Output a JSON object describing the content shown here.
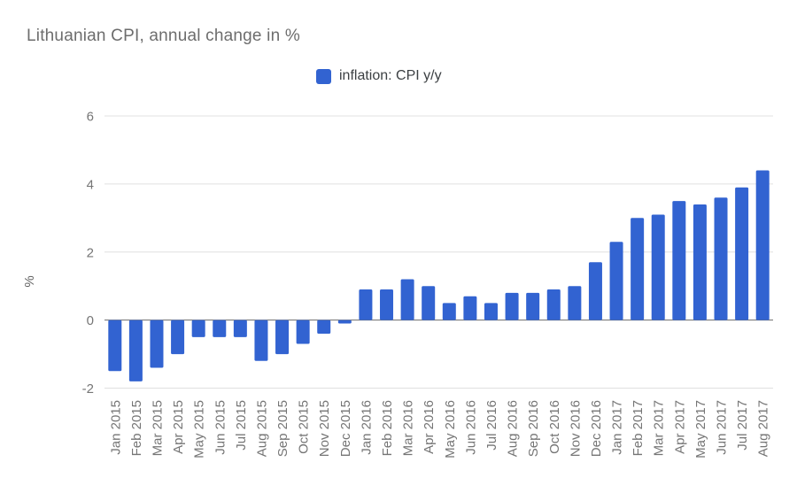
{
  "chart_data": {
    "type": "bar",
    "title": "Lithuanian CPI, annual change in %",
    "xlabel": "",
    "ylabel": "%",
    "ylim": [
      -2,
      6
    ],
    "yticks": [
      6,
      4,
      2,
      0,
      -2
    ],
    "grid": true,
    "legend_position": "top",
    "bar_color": "#3263d1",
    "gridline_color": "#e0e0e0",
    "zero_line_color": "#6b6b6b",
    "axis_label_color": "#757575",
    "categories": [
      "Jan 2015",
      "Feb 2015",
      "Mar 2015",
      "Apr 2015",
      "May 2015",
      "Jun 2015",
      "Jul 2015",
      "Aug 2015",
      "Sep 2015",
      "Oct 2015",
      "Nov 2015",
      "Dec 2015",
      "Jan 2016",
      "Feb 2016",
      "Mar 2016",
      "Apr 2016",
      "May 2016",
      "Jun 2016",
      "Jul 2016",
      "Aug 2016",
      "Sep 2016",
      "Oct 2016",
      "Nov 2016",
      "Dec 2016",
      "Jan 2017",
      "Feb 2017",
      "Mar 2017",
      "Apr 2017",
      "May 2017",
      "Jun 2017",
      "Jul 2017",
      "Aug 2017"
    ],
    "series": [
      {
        "name": "inflation: CPI y/y",
        "color": "#3263d1",
        "values": [
          -1.5,
          -1.8,
          -1.4,
          -1.0,
          -0.5,
          -0.5,
          -0.5,
          -1.2,
          -1.0,
          -0.7,
          -0.4,
          -0.1,
          0.9,
          0.9,
          1.2,
          1.0,
          0.5,
          0.7,
          0.5,
          0.8,
          0.8,
          0.9,
          1.0,
          1.7,
          2.3,
          3.0,
          3.1,
          3.5,
          3.4,
          3.6,
          3.9,
          4.4
        ]
      }
    ]
  }
}
